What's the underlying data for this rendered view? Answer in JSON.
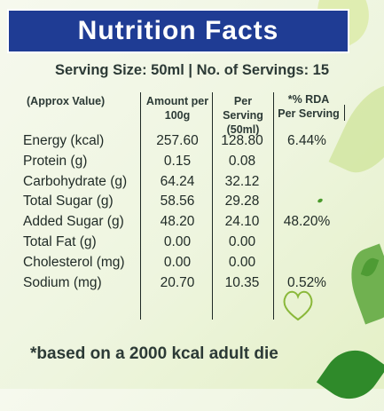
{
  "title": "Nutrition Facts",
  "serving_line": "Serving Size: 50ml  |  No. of Servings: 15",
  "headers": {
    "approx": "(Approx Value)",
    "per100_line1": "Amount per",
    "per100_line2": "100g",
    "perserv_line1": "Per Serving",
    "perserv_line2": "(50ml)",
    "rda_line1": "*% RDA",
    "rda_line2": "Per Serving"
  },
  "rows": [
    {
      "label": "Energy (kcal)",
      "per100": "257.60",
      "serving": "128.80",
      "rda": "6.44%"
    },
    {
      "label": "Protein (g)",
      "per100": "0.15",
      "serving": "0.08",
      "rda": ""
    },
    {
      "label": "Carbohydrate (g)",
      "per100": "64.24",
      "serving": "32.12",
      "rda": ""
    },
    {
      "label": "Total Sugar (g)",
      "per100": "58.56",
      "serving": "29.28",
      "rda": ""
    },
    {
      "label": "Added Sugar (g)",
      "per100": "48.20",
      "serving": "24.10",
      "rda": "48.20%"
    },
    {
      "label": "Total Fat (g)",
      "per100": "0.00",
      "serving": "0.00",
      "rda": ""
    },
    {
      "label": "Cholesterol (mg)",
      "per100": "0.00",
      "serving": "0.00",
      "rda": ""
    },
    {
      "label": "Sodium (mg)",
      "per100": "20.70",
      "serving": "10.35",
      "rda": "0.52%"
    }
  ],
  "footnote": "*based on a 2000 kcal adult die",
  "colors": {
    "title_bg": "#1f3c94",
    "title_text": "#ffffff",
    "leaf_green": "#4e9b34"
  }
}
